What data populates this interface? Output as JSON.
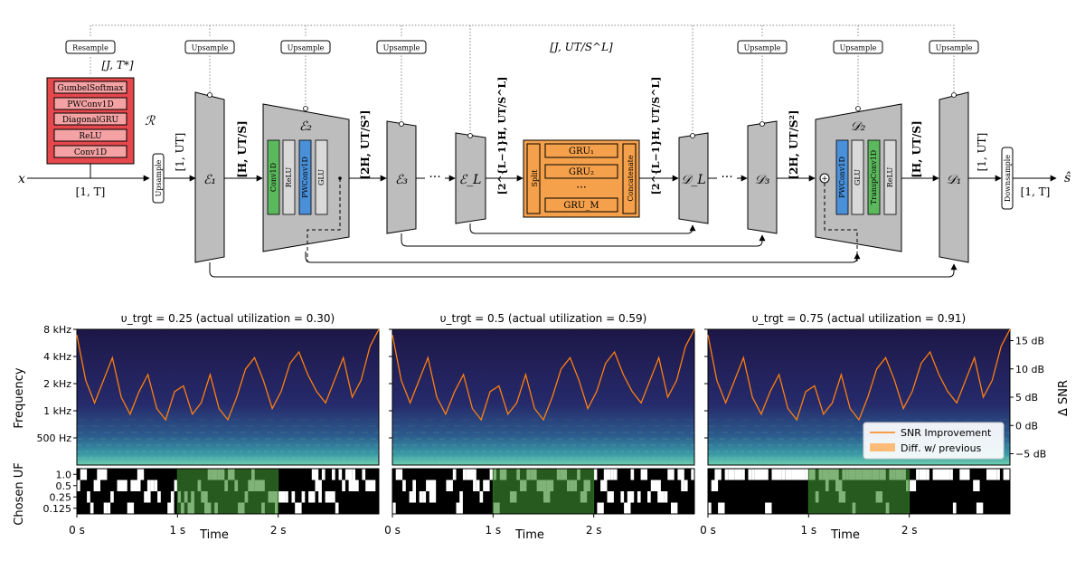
{
  "diagram": {
    "input": {
      "symbol": "x",
      "shape": "[1, T]"
    },
    "output": {
      "symbol": "ŝ",
      "shape": "[1, T]"
    },
    "resample": {
      "label": "Resample",
      "shape": "[J, T*]"
    },
    "router": {
      "symbol": "ℛ",
      "layers": [
        "GumbelSoftmax",
        "PWConv1D",
        "DiagonalGRU",
        "ReLU",
        "Conv1D"
      ]
    },
    "upsample_label": "Upsample",
    "downsample_label": "Downsample",
    "bottleneck_shape": "[J, UT/S^L]",
    "enc1": {
      "symbol": "ℰ₁",
      "in_shape": "[1, UT]",
      "out_shape": "[H, UT/S]"
    },
    "enc2": {
      "symbol": "ℰ₂",
      "layers": [
        "Conv1D",
        "ReLU",
        "PWConv1D",
        "GLU"
      ],
      "out_shape": "[2H, UT/S²]"
    },
    "enc3": {
      "symbol": "ℰ₃"
    },
    "encL": {
      "symbol": "ℰ_L",
      "out_shape": "[2^{L−1}H, UT/S^L]"
    },
    "dots": "···",
    "gru_block": {
      "split": "Split",
      "concat": "Concatenate",
      "grus": [
        "GRU₁",
        "GRU₂",
        "GRU_M"
      ],
      "dots": "···"
    },
    "decL": {
      "symbol": "𝒟_L",
      "in_shape": "[2^{L−1}H, UT/S^L]"
    },
    "dec3": {
      "symbol": "𝒟₃"
    },
    "dec2": {
      "symbol": "𝒟₂",
      "layers": [
        "PWConv1D",
        "GLU",
        "TranspConv1D",
        "ReLU"
      ],
      "in_shape": "[2H, UT/S²]",
      "out_shape": "[H, UT/S]"
    },
    "dec1": {
      "symbol": "𝒟₁",
      "out_shape": "[1, UT]"
    },
    "plus": "+"
  },
  "panels": [
    {
      "title": "υ_trgt = 0.25 (actual utilization = 0.30)",
      "v": 0.25,
      "actual": 0.3
    },
    {
      "title": "υ_trgt = 0.5 (actual utilization = 0.59)",
      "v": 0.5,
      "actual": 0.59
    },
    {
      "title": "υ_trgt = 0.75 (actual utilization = 0.91)",
      "v": 0.75,
      "actual": 0.91
    }
  ],
  "axes": {
    "freq_label": "Frequency",
    "freq_ticks": [
      "8 kHz",
      "4 kHz",
      "2 kHz",
      "1 kHz",
      "500 Hz"
    ],
    "snr_label": "Δ SNR",
    "snr_ticks": [
      "15 dB",
      "10 dB",
      "5 dB",
      "0 dB",
      "−5 dB"
    ],
    "uf_label": "Chosen UF",
    "uf_ticks": [
      "1.0",
      "0.5",
      "0.25",
      "0.125"
    ],
    "time_label": "Time",
    "time_ticks": [
      "0 s",
      "1 s",
      "2 s"
    ]
  },
  "legend": {
    "snr": "SNR Improvement",
    "diff": "Diff. w/ previous"
  },
  "colors": {
    "encoder": "#bdbdbd",
    "router": "#e5484d",
    "router_layer": "#f4a2a4",
    "gru": "#f5a04a",
    "conv": "#5cb85c",
    "pwconv": "#4a90d9",
    "misc": "#d9d9d9",
    "snr_line": "#ff7f0e",
    "diff_fill": "#ffbb78",
    "highlight": "#3c8a2e"
  },
  "chart_data": [
    {
      "type": "line",
      "title": "υ_trgt = 0.25 (actual utilization = 0.30)",
      "xlabel": "Time",
      "ylabel": "Δ SNR",
      "xlim": [
        0,
        3
      ],
      "ylim": [
        -7,
        17
      ],
      "series": [
        {
          "name": "SNR Improvement",
          "values": [
            16,
            8,
            4,
            8,
            12,
            5,
            2,
            6,
            9,
            3,
            1,
            6,
            7,
            2,
            4,
            9,
            3,
            1,
            5,
            10,
            12,
            8,
            3,
            6,
            11,
            13,
            9,
            6,
            4,
            8,
            12,
            5,
            8,
            14,
            17
          ]
        }
      ]
    },
    {
      "type": "line",
      "title": "υ_trgt = 0.5 (actual utilization = 0.59)",
      "xlabel": "Time",
      "ylabel": "Δ SNR",
      "xlim": [
        0,
        3
      ],
      "ylim": [
        -7,
        17
      ],
      "series": [
        {
          "name": "SNR Improvement",
          "values": [
            16,
            8,
            4,
            8,
            12,
            5,
            2,
            6,
            9,
            3,
            1,
            6,
            7,
            2,
            4,
            9,
            3,
            1,
            5,
            10,
            12,
            8,
            3,
            6,
            11,
            13,
            9,
            6,
            4,
            8,
            12,
            5,
            8,
            14,
            17
          ]
        }
      ]
    },
    {
      "type": "line",
      "title": "υ_trgt = 0.75 (actual utilization = 0.91)",
      "xlabel": "Time",
      "ylabel": "Δ SNR",
      "xlim": [
        0,
        3
      ],
      "ylim": [
        -7,
        17
      ],
      "series": [
        {
          "name": "SNR Improvement",
          "values": [
            16,
            8,
            4,
            8,
            12,
            5,
            2,
            6,
            9,
            3,
            1,
            6,
            7,
            2,
            4,
            9,
            3,
            1,
            5,
            10,
            12,
            8,
            3,
            6,
            11,
            13,
            9,
            6,
            4,
            8,
            12,
            5,
            8,
            14,
            17
          ]
        }
      ]
    }
  ]
}
